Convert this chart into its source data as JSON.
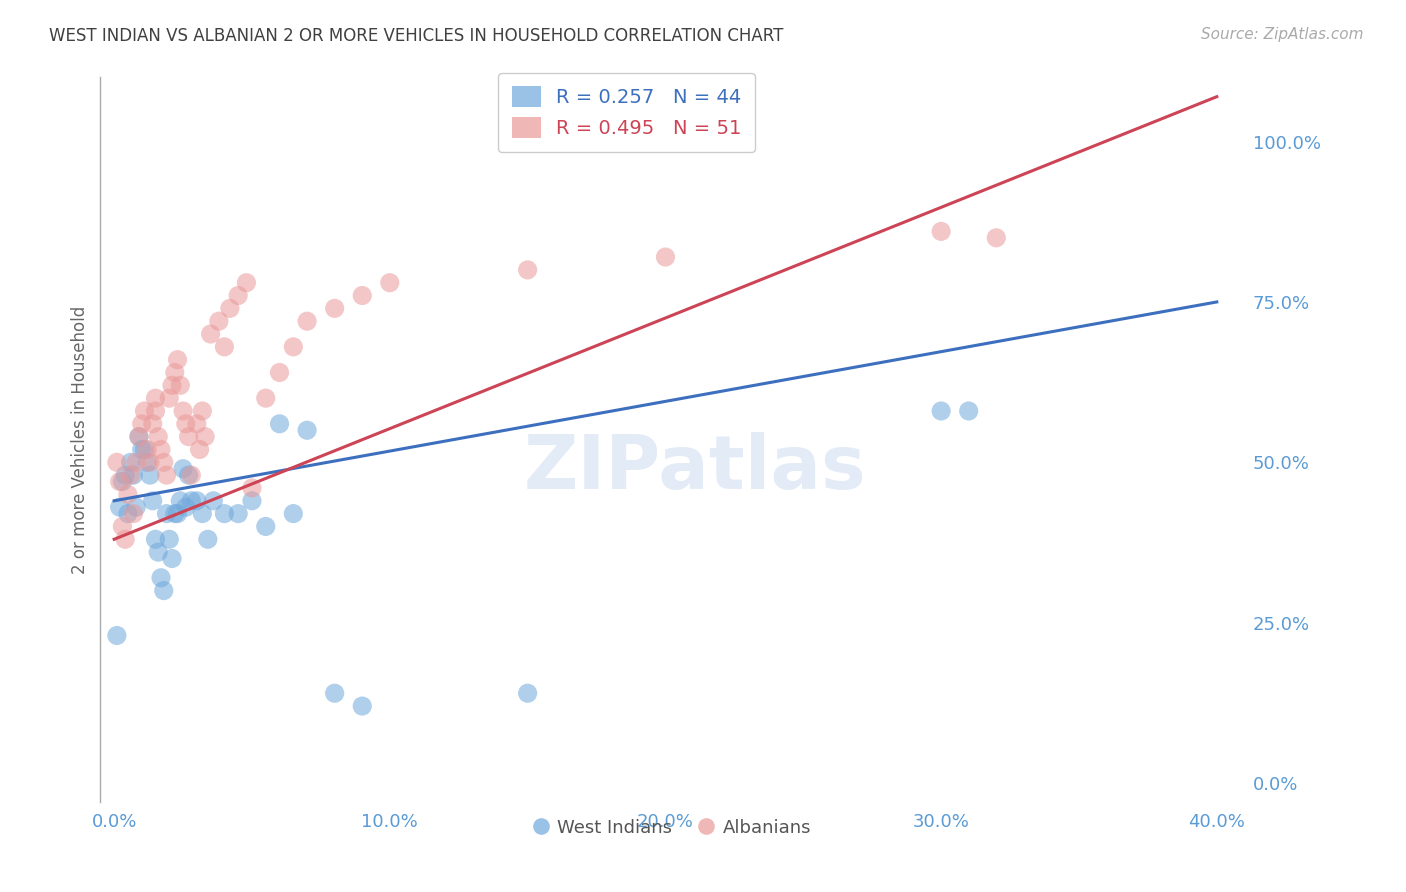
{
  "title": "WEST INDIAN VS ALBANIAN 2 OR MORE VEHICLES IN HOUSEHOLD CORRELATION CHART",
  "source": "Source: ZipAtlas.com",
  "ylabel": "2 or more Vehicles in Household",
  "watermark": "ZIPatlas",
  "x_tick_labels": [
    "0.0%",
    "10.0%",
    "20.0%",
    "30.0%",
    "40.0%"
  ],
  "x_tick_values": [
    0.0,
    0.1,
    0.2,
    0.3,
    0.4
  ],
  "y_tick_labels": [
    "0.0%",
    "25.0%",
    "50.0%",
    "75.0%",
    "100.0%"
  ],
  "y_tick_values": [
    0.0,
    0.25,
    0.5,
    0.75,
    1.0
  ],
  "xlim": [
    -0.005,
    0.41
  ],
  "ylim": [
    -0.03,
    1.1
  ],
  "west_indian_color": "#6fa8dc",
  "albanian_color": "#ea9999",
  "west_indian_line_color": "#3d6fbf",
  "albanian_line_color": "#cc4455",
  "legend_R_west_indian": "0.257",
  "legend_N_west_indian": "44",
  "legend_R_albanian": "0.495",
  "legend_N_albanian": "51",
  "west_indian_x": [
    0.001,
    0.002,
    0.003,
    0.004,
    0.005,
    0.006,
    0.007,
    0.008,
    0.009,
    0.01,
    0.011,
    0.012,
    0.013,
    0.014,
    0.015,
    0.016,
    0.017,
    0.018,
    0.019,
    0.02,
    0.021,
    0.022,
    0.023,
    0.024,
    0.025,
    0.026,
    0.027,
    0.028,
    0.03,
    0.032,
    0.034,
    0.036,
    0.04,
    0.045,
    0.05,
    0.055,
    0.06,
    0.065,
    0.07,
    0.08,
    0.09,
    0.15,
    0.3,
    0.31
  ],
  "west_indian_y": [
    0.23,
    0.43,
    0.47,
    0.48,
    0.42,
    0.5,
    0.48,
    0.43,
    0.54,
    0.52,
    0.52,
    0.5,
    0.48,
    0.44,
    0.38,
    0.36,
    0.32,
    0.3,
    0.42,
    0.38,
    0.35,
    0.42,
    0.42,
    0.44,
    0.49,
    0.43,
    0.48,
    0.44,
    0.44,
    0.42,
    0.38,
    0.44,
    0.42,
    0.42,
    0.44,
    0.4,
    0.56,
    0.42,
    0.55,
    0.14,
    0.12,
    0.14,
    0.58,
    0.58
  ],
  "albanian_x": [
    0.001,
    0.002,
    0.003,
    0.004,
    0.005,
    0.006,
    0.007,
    0.008,
    0.009,
    0.01,
    0.011,
    0.012,
    0.013,
    0.014,
    0.015,
    0.015,
    0.016,
    0.017,
    0.018,
    0.019,
    0.02,
    0.021,
    0.022,
    0.023,
    0.024,
    0.025,
    0.026,
    0.027,
    0.028,
    0.03,
    0.031,
    0.032,
    0.033,
    0.035,
    0.038,
    0.04,
    0.042,
    0.045,
    0.048,
    0.05,
    0.055,
    0.06,
    0.065,
    0.07,
    0.08,
    0.09,
    0.1,
    0.15,
    0.2,
    0.3,
    0.32
  ],
  "albanian_y": [
    0.5,
    0.47,
    0.4,
    0.38,
    0.45,
    0.48,
    0.42,
    0.5,
    0.54,
    0.56,
    0.58,
    0.52,
    0.5,
    0.56,
    0.6,
    0.58,
    0.54,
    0.52,
    0.5,
    0.48,
    0.6,
    0.62,
    0.64,
    0.66,
    0.62,
    0.58,
    0.56,
    0.54,
    0.48,
    0.56,
    0.52,
    0.58,
    0.54,
    0.7,
    0.72,
    0.68,
    0.74,
    0.76,
    0.78,
    0.46,
    0.6,
    0.64,
    0.68,
    0.72,
    0.74,
    0.76,
    0.78,
    0.8,
    0.82,
    0.86,
    0.85
  ],
  "wi_line_x": [
    0.0,
    0.4
  ],
  "wi_line_y": [
    0.44,
    0.75
  ],
  "al_line_x": [
    0.0,
    0.4
  ],
  "al_line_y": [
    0.38,
    1.07
  ],
  "background_color": "#ffffff",
  "grid_color": "#cccccc",
  "tick_label_color": "#5b9bd5",
  "title_color": "#404040",
  "axis_color": "#aaaaaa"
}
